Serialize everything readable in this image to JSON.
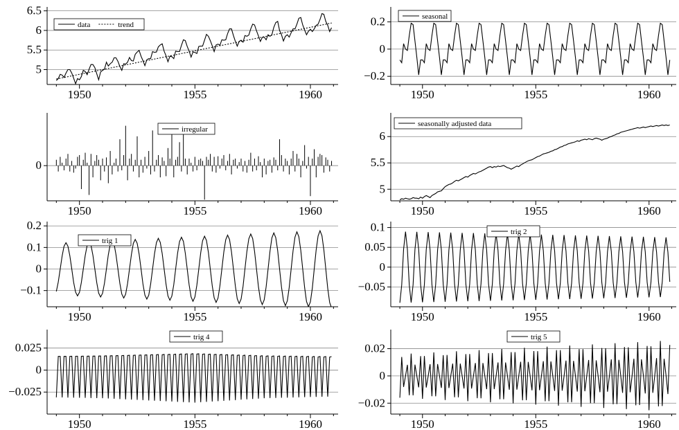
{
  "chart_data": [
    {
      "id": "data-trend",
      "type": "line",
      "xlim": [
        1948.6,
        1961.2
      ],
      "ylim": [
        4.62,
        6.6
      ],
      "yticks": [
        5,
        5.5,
        6,
        6.5
      ],
      "ytick_labels": [
        "5",
        "5.5",
        "6",
        "6.5"
      ],
      "xticks": [
        1950,
        1955,
        1960
      ],
      "xtick_labels": [
        "1950",
        "1955",
        "1960"
      ],
      "legend": [
        "data",
        "trend"
      ],
      "legend_position": "top-left",
      "series": [
        {
          "name": "data",
          "style": "solid",
          "x_start": 1949.0,
          "x_step": 0.08333,
          "values": [
            4.72,
            4.77,
            4.88,
            4.86,
            4.8,
            4.91,
            5.0,
            5.0,
            4.91,
            4.78,
            4.64,
            4.77,
            4.74,
            4.82,
            4.98,
            4.95,
            4.87,
            5.01,
            5.13,
            5.13,
            5.05,
            4.89,
            4.74,
            4.94,
            4.98,
            5.01,
            5.19,
            5.09,
            5.15,
            5.19,
            5.3,
            5.3,
            5.21,
            5.08,
            4.98,
            5.15,
            5.14,
            5.19,
            5.31,
            5.23,
            5.22,
            5.39,
            5.45,
            5.49,
            5.34,
            5.23,
            5.1,
            5.25,
            5.28,
            5.28,
            5.46,
            5.44,
            5.45,
            5.58,
            5.63,
            5.66,
            5.47,
            5.35,
            5.2,
            5.34,
            5.33,
            5.28,
            5.47,
            5.46,
            5.46,
            5.62,
            5.76,
            5.74,
            5.59,
            5.47,
            5.32,
            5.45,
            5.44,
            5.41,
            5.59,
            5.6,
            5.6,
            5.75,
            5.9,
            5.85,
            5.74,
            5.61,
            5.46,
            5.63,
            5.65,
            5.62,
            5.76,
            5.75,
            5.76,
            5.92,
            6.04,
            6.04,
            5.87,
            5.72,
            5.6,
            5.72,
            5.75,
            5.7,
            5.87,
            5.85,
            5.88,
            6.04,
            6.16,
            6.14,
            5.99,
            5.86,
            5.72,
            5.82,
            5.83,
            5.76,
            5.89,
            5.85,
            5.89,
            6.08,
            6.2,
            6.23,
            6.0,
            5.89,
            5.73,
            5.85,
            5.89,
            5.83,
            5.94,
            6.04,
            6.04,
            6.16,
            6.31,
            6.33,
            6.14,
            6.01,
            5.89,
            5.98,
            6.03,
            5.97,
            6.04,
            6.13,
            6.16,
            6.28,
            6.43,
            6.41,
            6.23,
            6.13,
            5.97,
            6.07
          ]
        },
        {
          "name": "trend",
          "style": "dotted",
          "x": [
            1949.0,
            1960.92
          ],
          "values": [
            4.76,
            6.19
          ]
        }
      ]
    },
    {
      "id": "seasonal",
      "type": "line",
      "xlim": [
        1948.6,
        1961.2
      ],
      "ylim": [
        -0.26,
        0.31
      ],
      "yticks": [
        -0.2,
        0,
        0.2
      ],
      "ytick_labels": [
        "−0.2",
        "0",
        "0.2"
      ],
      "xticks": [
        1950,
        1955,
        1960
      ],
      "xtick_labels": [
        "1950",
        "1955",
        "1960"
      ],
      "legend": [
        "seasonal"
      ],
      "legend_position": "top-left",
      "series": [
        {
          "name": "seasonal",
          "style": "solid",
          "x_start": 1949.0,
          "x_step": 0.08333,
          "pattern": "monthly",
          "values": [
            -0.08,
            -0.1,
            0.04,
            0.0,
            -0.01,
            0.1,
            0.19,
            0.18,
            0.06,
            -0.06,
            -0.19,
            -0.08
          ]
        }
      ]
    },
    {
      "id": "irregular",
      "type": "bar",
      "xlim": [
        1948.6,
        1961.2
      ],
      "ylim": [
        -0.06,
        0.09
      ],
      "yticks": [
        0
      ],
      "ytick_labels": [
        "0"
      ],
      "xticks": [
        1950,
        1955,
        1960
      ],
      "xtick_labels": [
        "1950",
        "1955",
        "1960"
      ],
      "legend": [
        "irregular"
      ],
      "legend_position": "top-center",
      "series": [
        {
          "name": "irregular",
          "style": "spikes",
          "x_start": 1949.0,
          "x_step": 0.08333,
          "values": [
            0.01,
            -0.01,
            0.015,
            0.005,
            -0.008,
            0.012,
            0.02,
            -0.01,
            0.008,
            -0.012,
            -0.005,
            0.015,
            0.018,
            -0.04,
            0.01,
            0.022,
            0.005,
            -0.05,
            0.02,
            -0.02,
            0.008,
            0.018,
            0.01,
            -0.025,
            0.012,
            -0.01,
            0.014,
            -0.03,
            0.025,
            -0.015,
            0.005,
            0.012,
            -0.01,
            0.045,
            -0.008,
            0.018,
            0.068,
            -0.025,
            0.012,
            0.02,
            -0.01,
            0.01,
            0.05,
            -0.02,
            0.01,
            -0.012,
            0.015,
            -0.005,
            0.025,
            -0.015,
            0.06,
            -0.01,
            0.01,
            0.018,
            -0.02,
            0.014,
            0.008,
            -0.018,
            0.03,
            0.012,
            0.072,
            -0.02,
            0.01,
            0.015,
            0.04,
            -0.01,
            0.06,
            0.012,
            -0.015,
            0.012,
            0.005,
            -0.01,
            0.015,
            -0.008,
            0.01,
            0.012,
            0.008,
            -0.058,
            0.015,
            0.01,
            0.02,
            -0.01,
            0.015,
            -0.012,
            0.016,
            -0.005,
            0.012,
            0.018,
            -0.008,
            0.008,
            0.02,
            -0.015,
            0.01,
            0.012,
            -0.005,
            0.006,
            0.012,
            -0.01,
            0.008,
            -0.012,
            0.01,
            0.022,
            -0.01,
            0.012,
            -0.008,
            0.016,
            0.006,
            -0.02,
            0.012,
            -0.015,
            0.008,
            0.01,
            -0.012,
            0.014,
            0.01,
            -0.008,
            0.045,
            0.018,
            -0.01,
            0.012,
            0.008,
            -0.015,
            0.012,
            0.025,
            -0.01,
            0.02,
            0.012,
            -0.02,
            0.008,
            0.035,
            -0.005,
            0.015,
            -0.052,
            0.012,
            0.028,
            -0.02,
            0.015,
            0.02,
            0.018,
            -0.012,
            0.014,
            0.01,
            -0.01,
            0.008
          ]
        }
      ]
    },
    {
      "id": "seasonally-adjusted",
      "type": "line",
      "xlim": [
        1948.6,
        1961.2
      ],
      "ylim": [
        4.78,
        6.45
      ],
      "yticks": [
        5,
        5.5,
        6
      ],
      "ytick_labels": [
        "5",
        "5.5",
        "6"
      ],
      "xticks": [
        1950,
        1955,
        1960
      ],
      "xtick_labels": [
        "1950",
        "1955",
        "1960"
      ],
      "legend": [
        "seasonally adjusted data"
      ],
      "legend_position": "top-left",
      "series": [
        {
          "name": "seasonally adjusted data",
          "style": "solid",
          "x_start": 1949.0,
          "x_step": 0.08333,
          "values": [
            4.8,
            4.82,
            4.81,
            4.83,
            4.82,
            4.81,
            4.82,
            4.84,
            4.83,
            4.83,
            4.82,
            4.85,
            4.83,
            4.86,
            4.88,
            4.86,
            4.84,
            4.88,
            4.9,
            4.92,
            4.95,
            4.96,
            4.97,
            5.01,
            5.05,
            5.07,
            5.09,
            5.1,
            5.12,
            5.15,
            5.17,
            5.16,
            5.18,
            5.2,
            5.22,
            5.24,
            5.23,
            5.26,
            5.28,
            5.3,
            5.29,
            5.31,
            5.33,
            5.34,
            5.36,
            5.38,
            5.4,
            5.42,
            5.43,
            5.41,
            5.43,
            5.42,
            5.44,
            5.43,
            5.44,
            5.45,
            5.43,
            5.41,
            5.4,
            5.38,
            5.4,
            5.42,
            5.44,
            5.43,
            5.46,
            5.48,
            5.5,
            5.52,
            5.54,
            5.55,
            5.56,
            5.58,
            5.6,
            5.62,
            5.63,
            5.65,
            5.67,
            5.68,
            5.69,
            5.7,
            5.72,
            5.73,
            5.75,
            5.76,
            5.78,
            5.8,
            5.81,
            5.83,
            5.84,
            5.86,
            5.87,
            5.88,
            5.89,
            5.9,
            5.92,
            5.91,
            5.93,
            5.94,
            5.95,
            5.94,
            5.96,
            5.95,
            5.94,
            5.96,
            5.97,
            5.96,
            5.95,
            5.93,
            5.95,
            5.96,
            5.97,
            5.99,
            6.0,
            6.02,
            6.03,
            6.05,
            6.06,
            6.08,
            6.09,
            6.1,
            6.11,
            6.12,
            6.13,
            6.14,
            6.15,
            6.16,
            6.17,
            6.16,
            6.17,
            6.18,
            6.17,
            6.18,
            6.19,
            6.2,
            6.19,
            6.2,
            6.21,
            6.2,
            6.21,
            6.22,
            6.21,
            6.22,
            6.21,
            6.22
          ]
        }
      ]
    },
    {
      "id": "trig1",
      "type": "line",
      "xlim": [
        1948.6,
        1961.2
      ],
      "ylim": [
        -0.175,
        0.22
      ],
      "yticks": [
        -0.1,
        0,
        0.1,
        0.2
      ],
      "ytick_labels": [
        "−0.1",
        "0",
        "0.1",
        "0.2"
      ],
      "xticks": [
        1950,
        1955,
        1960
      ],
      "xtick_labels": [
        "1950",
        "1955",
        "1960"
      ],
      "legend": [
        "trig 1"
      ],
      "legend_position": "top-left",
      "series": [
        {
          "name": "trig 1",
          "style": "solid",
          "model": "sinusoid",
          "period_years": 1.0,
          "cycle_offset_months": 1,
          "x_start": 1949.0,
          "x_step": 0.08333,
          "n_points": 144,
          "amplitude_start": 0.12,
          "amplitude_end": 0.18
        }
      ]
    },
    {
      "id": "trig2",
      "type": "line",
      "xlim": [
        1948.6,
        1961.2
      ],
      "ylim": [
        -0.1,
        0.115
      ],
      "yticks": [
        -0.05,
        0,
        0.05,
        0.1
      ],
      "ytick_labels": [
        "−0.05",
        "0",
        "0.05",
        "0.1"
      ],
      "xticks": [
        1950,
        1955,
        1960
      ],
      "xtick_labels": [
        "1950",
        "1955",
        "1960"
      ],
      "legend": [
        "trig 2"
      ],
      "legend_position": "top-center",
      "series": [
        {
          "name": "trig 2",
          "style": "solid",
          "model": "sinusoid",
          "period_years": 0.5,
          "cycle_offset_months": 0,
          "x_start": 1949.0,
          "x_step": 0.08333,
          "n_points": 144,
          "amplitude_start": 0.09,
          "amplitude_end": 0.075
        }
      ]
    },
    {
      "id": "trig4",
      "type": "line",
      "xlim": [
        1948.6,
        1961.2
      ],
      "ylim": [
        -0.05,
        0.046
      ],
      "yticks": [
        -0.025,
        0,
        0.025
      ],
      "ytick_labels": [
        "−0.025",
        "0",
        "0.025"
      ],
      "xticks": [
        1950,
        1955,
        1960
      ],
      "xtick_labels": [
        "1950",
        "1955",
        "1960"
      ],
      "legend": [
        "trig 4"
      ],
      "legend_position": "top-center",
      "series": [
        {
          "name": "trig 4",
          "style": "solid",
          "model": "sinusoid",
          "period_years": 0.25,
          "cycle_offset_months": 0,
          "x_start": 1949.0,
          "x_step": 0.08333,
          "n_points": 144,
          "amplitude_points_x": [
            1949,
            1951,
            1955,
            1958,
            1961
          ],
          "amplitude_points_y": [
            0.031,
            0.032,
            0.037,
            0.032,
            0.03
          ]
        }
      ]
    },
    {
      "id": "trig5",
      "type": "line",
      "xlim": [
        1948.6,
        1961.2
      ],
      "ylim": [
        -0.028,
        0.034
      ],
      "yticks": [
        -0.02,
        0,
        0.02
      ],
      "ytick_labels": [
        "−0.02",
        "0",
        "0.02"
      ],
      "xticks": [
        1950,
        1955,
        1960
      ],
      "xtick_labels": [
        "1950",
        "1955",
        "1960"
      ],
      "legend": [
        "trig 5"
      ],
      "legend_position": "top-center",
      "series": [
        {
          "name": "trig 5",
          "style": "solid",
          "model": "sinusoid",
          "period_years": 0.2,
          "cycle_offset_months": 0,
          "x_start": 1949.0,
          "x_step": 0.08333,
          "n_points": 144,
          "amplitude_start": 0.016,
          "amplitude_end": 0.026
        }
      ]
    }
  ]
}
